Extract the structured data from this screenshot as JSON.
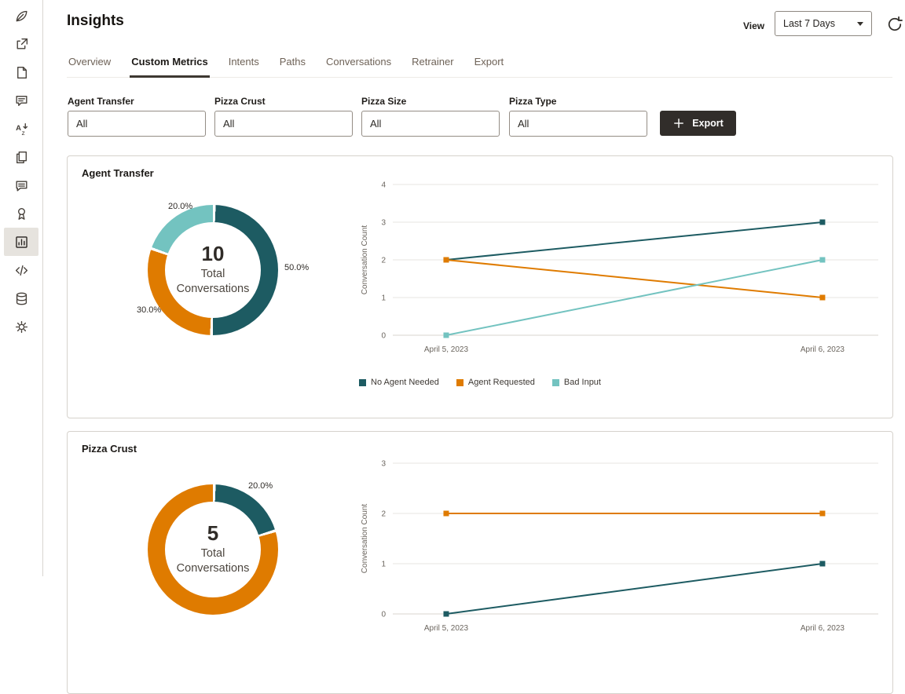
{
  "header": {
    "title": "Insights",
    "view_label": "View",
    "period": "Last 7 Days"
  },
  "sidebar": {
    "items": [
      {
        "name": "feather-icon",
        "selected": false
      },
      {
        "name": "release-icon",
        "selected": false
      },
      {
        "name": "file-icon",
        "selected": false
      },
      {
        "name": "chat-icon",
        "selected": false
      },
      {
        "name": "translate-icon",
        "selected": false
      },
      {
        "name": "copy-icon",
        "selected": false
      },
      {
        "name": "conversation-icon",
        "selected": false
      },
      {
        "name": "badge-icon",
        "selected": false
      },
      {
        "name": "insights-icon",
        "selected": true
      },
      {
        "name": "code-icon",
        "selected": false
      },
      {
        "name": "database-icon",
        "selected": false
      },
      {
        "name": "settings-icon",
        "selected": false
      }
    ]
  },
  "tabs": [
    {
      "label": "Overview",
      "active": false
    },
    {
      "label": "Custom Metrics",
      "active": true
    },
    {
      "label": "Intents",
      "active": false
    },
    {
      "label": "Paths",
      "active": false
    },
    {
      "label": "Conversations",
      "active": false
    },
    {
      "label": "Retrainer",
      "active": false
    },
    {
      "label": "Export",
      "active": false
    }
  ],
  "filters": [
    {
      "label": "Agent Transfer",
      "value": "All"
    },
    {
      "label": "Pizza Crust",
      "value": "All"
    },
    {
      "label": "Pizza Size",
      "value": "All"
    },
    {
      "label": "Pizza Type",
      "value": "All"
    }
  ],
  "export_button": {
    "label": "Export"
  },
  "cards": [
    {
      "title": "Agent Transfer"
    },
    {
      "title": "Pizza Crust"
    }
  ],
  "colors": {
    "dark_teal": "#1d5b62",
    "orange": "#df7b00",
    "light_teal": "#73c3c0",
    "button_dark": "#312d2a"
  },
  "chart_data": [
    {
      "type": "pie",
      "title": "Agent Transfer",
      "center_value": "10",
      "center_label": "Total Conversations",
      "percent_labels": [
        "20.0%",
        "50.0%",
        "30.0%"
      ],
      "slices": [
        {
          "name": "No Agent Needed",
          "pct": 50.0,
          "color": "#1d5b62"
        },
        {
          "name": "Agent Requested",
          "pct": 30.0,
          "color": "#df7b00"
        },
        {
          "name": "Bad Input",
          "pct": 20.0,
          "color": "#73c3c0"
        }
      ]
    },
    {
      "type": "line",
      "x": [
        "April 5, 2023",
        "April 6, 2023"
      ],
      "ylabel": "Conversation Count",
      "ylim": [
        0,
        4
      ],
      "series": [
        {
          "name": "No Agent Needed",
          "color": "#1d5b62",
          "values": [
            2,
            3
          ]
        },
        {
          "name": "Agent Requested",
          "color": "#df7b00",
          "values": [
            2,
            1
          ]
        },
        {
          "name": "Bad Input",
          "color": "#73c3c0",
          "values": [
            0,
            2
          ]
        }
      ]
    },
    {
      "type": "pie",
      "title": "Pizza Crust",
      "center_value": "5",
      "center_label": "Total Conversations",
      "percent_labels": [
        "20.0%"
      ],
      "slices": [
        {
          "name": "",
          "pct": 20.0,
          "color": "#1d5b62"
        },
        {
          "name": "",
          "pct": 80.0,
          "color": "#df7b00"
        }
      ]
    },
    {
      "type": "line",
      "x": [
        "April 5, 2023",
        "April 6, 2023"
      ],
      "ylabel": "Conversation Count",
      "ylim": [
        0,
        3
      ],
      "series": [
        {
          "name": "",
          "color": "#df7b00",
          "values": [
            2,
            2
          ]
        },
        {
          "name": "",
          "color": "#1d5b62",
          "values": [
            0,
            1
          ]
        }
      ]
    }
  ]
}
